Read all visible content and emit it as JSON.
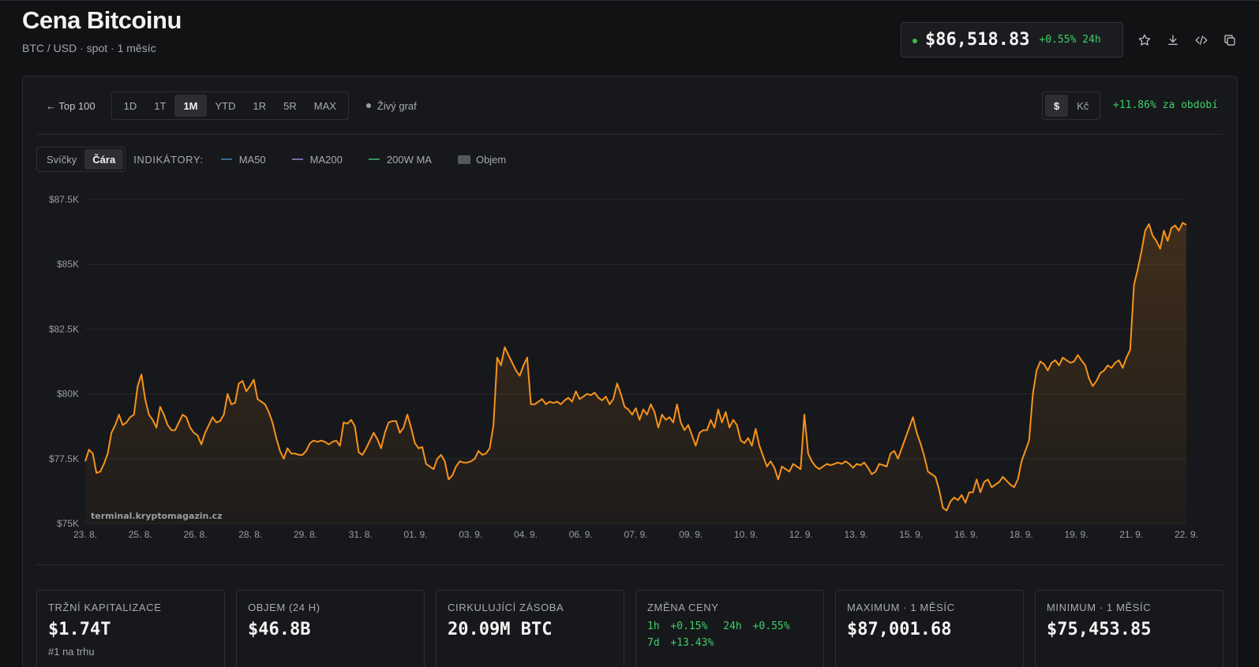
{
  "header": {
    "title": "Cena Bitcoinu",
    "subtitle": "BTC / USD · spot · 1 měsíc"
  },
  "price_box": {
    "price": "$86,518.83",
    "change": "+0.55% 24h"
  },
  "toolbar_icons": [
    "star-icon",
    "download-icon",
    "code-icon",
    "copy-icon"
  ],
  "controls": {
    "back_label": "← Top 100",
    "ranges": [
      "1D",
      "1T",
      "1M",
      "YTD",
      "1R",
      "5R",
      "MAX"
    ],
    "active_range": "1M",
    "live_chart_label": "Živý graf",
    "currencies": [
      "$",
      "Kč"
    ],
    "active_currency": "$",
    "period_change": "+11.86% za období"
  },
  "chart_controls": {
    "types": [
      "Svíčky",
      "Čára"
    ],
    "active_type": "Čára",
    "indicators_label": "INDIKÁTORY:",
    "indicators": [
      {
        "name": "MA50",
        "color": "#2f6f9a"
      },
      {
        "name": "MA200",
        "color": "#7a6fa8"
      },
      {
        "name": "200W MA",
        "color": "#3a8f55"
      },
      {
        "name": "Objem",
        "color": "#55585e"
      }
    ]
  },
  "chart_data": {
    "type": "area",
    "line_color": "#f7931a",
    "ylim": [
      75000,
      87500
    ],
    "y_ticks": [
      75000,
      77500,
      80000,
      82500,
      85000,
      87500
    ],
    "y_tick_labels": [
      "$75K",
      "$77.5K",
      "$80K",
      "$82.5K",
      "$85K",
      "$87.5K"
    ],
    "x_labels": [
      "23. 8.",
      "25. 8.",
      "26. 8.",
      "28. 8.",
      "29. 8.",
      "31. 8.",
      "01. 9.",
      "03. 9.",
      "04. 9.",
      "06. 9.",
      "07. 9.",
      "09. 9.",
      "10. 9.",
      "12. 9.",
      "13. 9.",
      "15. 9.",
      "16. 9.",
      "18. 9.",
      "19. 9.",
      "21. 9.",
      "22. 9."
    ],
    "watermark": "terminal.kryptomagazin.cz",
    "values": [
      77400,
      77850,
      77700,
      76950,
      77000,
      77300,
      77700,
      78500,
      78800,
      79200,
      78800,
      78900,
      79100,
      79200,
      80300,
      80750,
      79800,
      79200,
      79000,
      78700,
      79500,
      79200,
      78800,
      78600,
      78600,
      78900,
      79200,
      79100,
      78700,
      78500,
      78400,
      78050,
      78500,
      78800,
      79100,
      78900,
      78950,
      79200,
      80000,
      79600,
      79650,
      80400,
      80500,
      80100,
      80300,
      80550,
      79800,
      79700,
      79600,
      79300,
      78900,
      78300,
      77800,
      77500,
      77900,
      77700,
      77700,
      77650,
      77650,
      77800,
      78100,
      78200,
      78150,
      78200,
      78150,
      78050,
      78150,
      78200,
      78000,
      78900,
      78850,
      79000,
      78750,
      77750,
      77650,
      77900,
      78200,
      78500,
      78250,
      77900,
      78500,
      78900,
      78950,
      78950,
      78500,
      78700,
      79200,
      78700,
      78100,
      77900,
      77950,
      77300,
      77200,
      77100,
      77500,
      77650,
      77400,
      76700,
      76850,
      77200,
      77400,
      77350,
      77350,
      77400,
      77500,
      77800,
      77650,
      77700,
      77900,
      78800,
      81400,
      81100,
      81800,
      81500,
      81200,
      80900,
      80700,
      81100,
      81400,
      79600,
      79600,
      79700,
      79800,
      79600,
      79700,
      79650,
      79700,
      79600,
      79750,
      79850,
      79700,
      80100,
      79800,
      79900,
      80000,
      79950,
      80050,
      79850,
      79750,
      79900,
      79600,
      79800,
      80400,
      80000,
      79500,
      79400,
      79200,
      79450,
      79000,
      79400,
      79200,
      79600,
      79300,
      78700,
      79200,
      79000,
      79100,
      78900,
      79600,
      78900,
      78600,
      78800,
      78400,
      78000,
      78500,
      78600,
      78600,
      79000,
      78700,
      79400,
      78900,
      79300,
      78700,
      79000,
      78800,
      78200,
      78100,
      78300,
      78000,
      78650,
      78000,
      77600,
      77200,
      77400,
      77150,
      76700,
      77200,
      77100,
      77000,
      77300,
      77200,
      77100,
      79200,
      77700,
      77400,
      77200,
      77100,
      77200,
      77300,
      77250,
      77300,
      77350,
      77300,
      77400,
      77300,
      77150,
      77300,
      77250,
      77350,
      77150,
      76900,
      77000,
      77300,
      77250,
      77200,
      77700,
      77800,
      77500,
      77900,
      78300,
      78700,
      79100,
      78500,
      78100,
      77600,
      77000,
      76900,
      76800,
      76300,
      75600,
      75500,
      75850,
      76000,
      75900,
      76100,
      75800,
      76200,
      76200,
      76700,
      76200,
      76600,
      76700,
      76400,
      76500,
      76600,
      76800,
      76650,
      76500,
      76400,
      76700,
      77400,
      77800,
      78200,
      80000,
      80900,
      81250,
      81150,
      80900,
      81200,
      81300,
      81100,
      81400,
      81300,
      81200,
      81250,
      81500,
      81300,
      81100,
      80600,
      80300,
      80500,
      80800,
      80900,
      81100,
      81000,
      81200,
      81300,
      81000,
      81400,
      81700,
      84200,
      84800,
      85500,
      86300,
      86550,
      86100,
      85900,
      85600,
      86300,
      85900,
      86400,
      86500,
      86300,
      86600,
      86520
    ]
  },
  "stats": [
    {
      "label": "TRŽNÍ KAPITALIZACE",
      "value": "$1.74T",
      "sub": "#1 na trhu"
    },
    {
      "label": "OBJEM (24 H)",
      "value": "$46.8B"
    },
    {
      "label": "CIRKULUJÍCÍ ZÁSOBA",
      "value": "20.09M BTC"
    },
    {
      "label": "ZMĚNA CENY",
      "changes": [
        {
          "period": "1h",
          "value": "+0.15%"
        },
        {
          "period": "24h",
          "value": "+0.55%"
        },
        {
          "period": "7d",
          "value": "+13.43%"
        }
      ]
    },
    {
      "label": "MAXIMUM · 1 MĚSÍC",
      "value": "$87,001.68"
    },
    {
      "label": "MINIMUM · 1 MĚSÍC",
      "value": "$75,453.85"
    }
  ]
}
